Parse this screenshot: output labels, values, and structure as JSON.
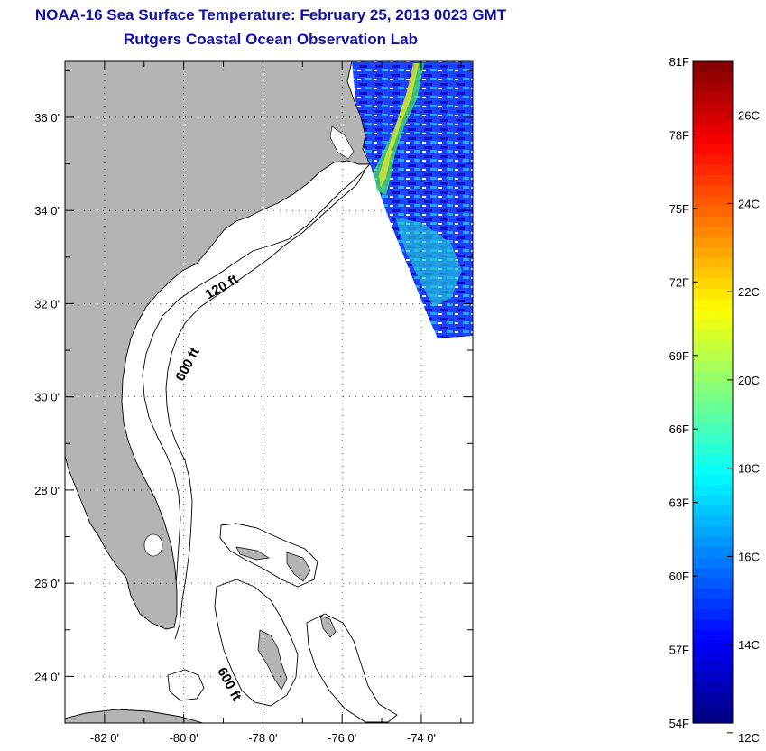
{
  "header": {
    "title": "NOAA-16 Sea Surface Temperature:  February 25, 2013 0023 GMT",
    "subtitle": "Rutgers Coastal Ocean Observation Lab"
  },
  "map": {
    "lon_range": [
      -83,
      -72.7
    ],
    "lat_range": [
      23,
      37.2
    ],
    "lat_ticks": [
      {
        "value": 36,
        "label": "36 0'"
      },
      {
        "value": 34,
        "label": "34 0'"
      },
      {
        "value": 32,
        "label": "32 0'"
      },
      {
        "value": 30,
        "label": "30 0'"
      },
      {
        "value": 28,
        "label": "28 0'"
      },
      {
        "value": 26,
        "label": "26 0'"
      },
      {
        "value": 24,
        "label": "24 0'"
      }
    ],
    "lon_ticks": [
      {
        "value": -82,
        "label": "-82 0'"
      },
      {
        "value": -80,
        "label": "-80 0'"
      },
      {
        "value": -78,
        "label": "-78 0'"
      },
      {
        "value": -76,
        "label": "-76 0'"
      },
      {
        "value": -74,
        "label": "-74 0'"
      }
    ],
    "contour_labels": [
      "120 ft",
      "600 ft",
      "600 ft"
    ],
    "land_color": "#b4b4b4"
  },
  "colorbar": {
    "f_range": [
      54,
      81
    ],
    "f_labels": [
      "81F",
      "78F",
      "75F",
      "72F",
      "69F",
      "66F",
      "63F",
      "60F",
      "57F",
      "54F"
    ],
    "c_labels": [
      "26C",
      "24C",
      "22C",
      "20C",
      "18C",
      "16C",
      "14C",
      "12C"
    ],
    "colormap": "jet"
  }
}
